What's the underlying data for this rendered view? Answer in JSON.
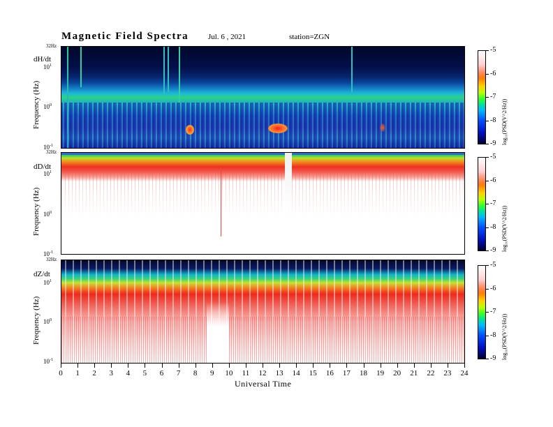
{
  "header": {
    "title": "Magnetic Field Spectra",
    "date": "Jul.  6 , 2021",
    "station": "station=ZGN"
  },
  "chart_data": [
    {
      "type": "heatmap",
      "component": "dH/dt",
      "ylabel": "Frequency (Hz)",
      "y_ticks": [
        "32Hz",
        "10",
        "10",
        "10"
      ],
      "y_tick_exponents": [
        "",
        "1",
        "0",
        "-1"
      ],
      "xlabel": "Universal Time",
      "xlim": [
        0,
        24
      ],
      "colorbar": {
        "label": "log₁₀(PSD(V^2/Hz))",
        "ticks": [
          "-5",
          "-6",
          "-7",
          "-8",
          "-9"
        ],
        "range": [
          -9,
          -5
        ]
      }
    },
    {
      "type": "heatmap",
      "component": "dD/dt",
      "ylabel": "Frequency (Hz)",
      "y_ticks": [
        "32Hz",
        "10",
        "10",
        "10"
      ],
      "y_tick_exponents": [
        "",
        "1",
        "0",
        "-1"
      ],
      "xlabel": "Universal Time",
      "xlim": [
        0,
        24
      ],
      "colorbar": {
        "label": "log₁₀(PSD(V^2/Hz))",
        "ticks": [
          "-5",
          "-6",
          "-7",
          "-8",
          "-9"
        ],
        "range": [
          -9,
          -5
        ]
      }
    },
    {
      "type": "heatmap",
      "component": "dZ/dt",
      "ylabel": "Frequency (Hz)",
      "y_ticks": [
        "32Hz",
        "10",
        "10",
        "10"
      ],
      "y_tick_exponents": [
        "",
        "1",
        "0",
        "-1"
      ],
      "xlabel": "Universal Time",
      "xlim": [
        0,
        24
      ],
      "colorbar": {
        "label": "log₁₀(PSD(V^2/Hz))",
        "ticks": [
          "-5",
          "-6",
          "-7",
          "-8",
          "-9"
        ],
        "range": [
          -9,
          -5
        ]
      }
    }
  ],
  "x_axis": {
    "title": "Universal Time",
    "ticks": [
      "0",
      "1",
      "2",
      "3",
      "4",
      "5",
      "6",
      "7",
      "8",
      "9",
      "10",
      "11",
      "12",
      "13",
      "14",
      "15",
      "16",
      "17",
      "18",
      "19",
      "20",
      "21",
      "22",
      "23",
      "24"
    ]
  },
  "colors": {
    "background": "#ffffff",
    "axis": "#000000"
  }
}
